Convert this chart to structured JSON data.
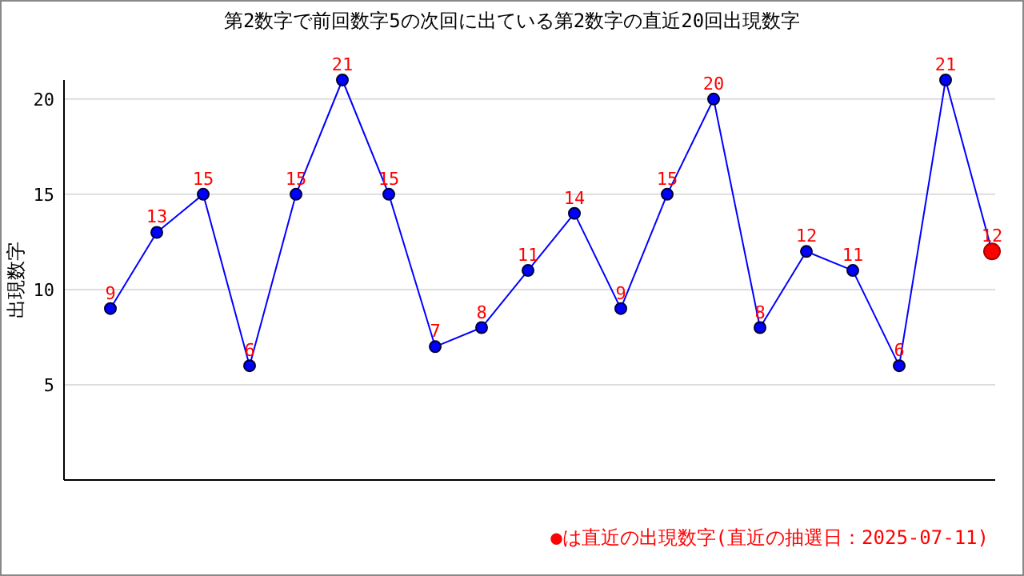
{
  "chart_data": {
    "type": "line",
    "title": "第2数字で前回数字5の次回に出ている第2数字の直近20回出現数字",
    "ylabel": "出現数字",
    "categories": [
      null,
      null,
      null,
      null,
      null,
      null,
      null,
      null,
      null,
      null,
      null,
      null,
      null,
      null,
      null,
      null,
      null,
      null,
      null,
      null
    ],
    "series": [
      {
        "color": "#0000ff",
        "values": [
          9,
          13,
          15,
          6,
          15,
          21,
          15,
          7,
          8,
          11,
          14,
          9,
          15,
          20,
          8,
          12,
          11,
          6,
          21,
          12
        ],
        "colors": [
          "#0000ff",
          "#0000ff",
          "#0000ff",
          "#0000ff",
          "#0000ff",
          "#0000ff",
          "#0000ff",
          "#0000ff",
          "#0000ff",
          "#0000ff",
          "#0000ff",
          "#0000ff",
          "#0000ff",
          "#0000ff",
          "#0000ff",
          "#0000ff",
          "#0000ff",
          "#0000ff",
          "#0000ff",
          "#ff0000"
        ]
      }
    ],
    "ylim": [
      0,
      21
    ],
    "yticks": [
      5,
      10,
      15,
      20
    ],
    "grid": "y",
    "marker": "circle",
    "data_labels": true,
    "tick_labels": "y",
    "annotations": [
      "●は直近の出現数字(直近の抽選日：2025-07-11)"
    ]
  }
}
